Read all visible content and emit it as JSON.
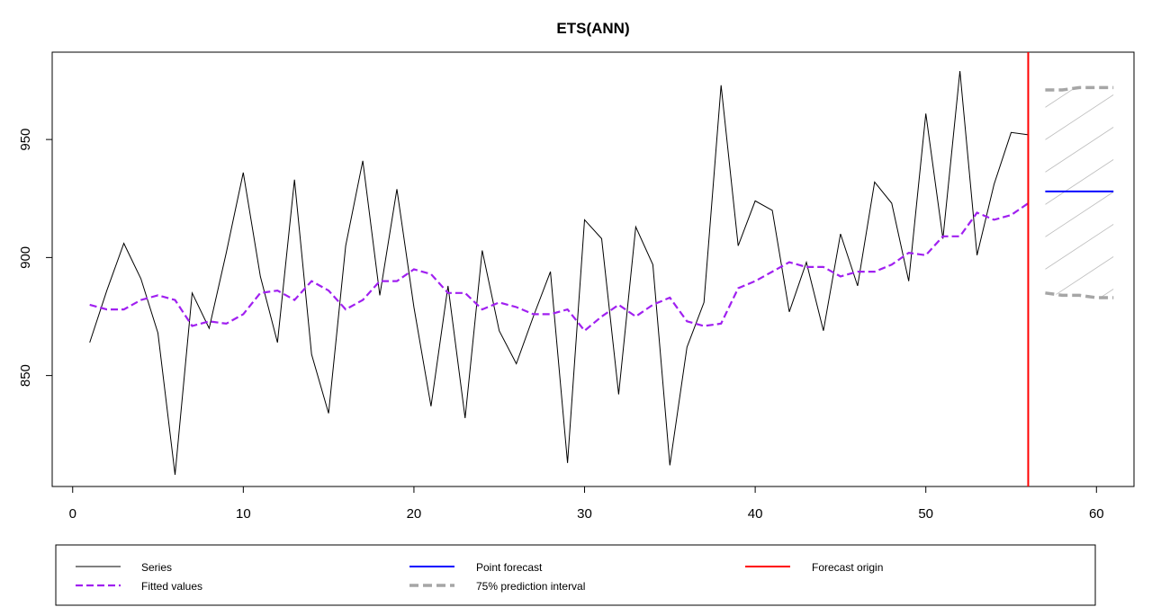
{
  "chart_data": {
    "type": "line",
    "title": "ETS(ANN)",
    "xlabel": "",
    "ylabel": "",
    "xlim": [
      -1.2,
      62.2
    ],
    "ylim": [
      803,
      987
    ],
    "x_ticks": [
      0,
      10,
      20,
      30,
      40,
      50,
      60
    ],
    "y_ticks": [
      850,
      900,
      950
    ],
    "grid": false,
    "legend_position": "bottom",
    "colors": {
      "series": "#000000",
      "fitted": "#a020f0",
      "point_forecast": "#0000ff",
      "forecast_origin": "#ff0000",
      "interval": "#a6a6a6",
      "interval_fill": "#bebebe"
    },
    "series": [
      {
        "name": "Series",
        "x": [
          1,
          2,
          3,
          4,
          5,
          6,
          7,
          8,
          9,
          10,
          11,
          12,
          13,
          14,
          15,
          16,
          17,
          18,
          19,
          20,
          21,
          22,
          23,
          24,
          25,
          26,
          27,
          28,
          29,
          30,
          31,
          32,
          33,
          34,
          35,
          36,
          37,
          38,
          39,
          40,
          41,
          42,
          43,
          44,
          45,
          46,
          47,
          48,
          49,
          50,
          51,
          52,
          53,
          54,
          55,
          56
        ],
        "values": [
          864,
          886,
          906,
          891,
          868,
          808,
          885,
          870,
          902,
          936,
          892,
          864,
          933,
          859,
          834,
          905,
          941,
          884,
          929,
          879,
          837,
          888,
          832,
          903,
          869,
          855,
          875,
          894,
          813,
          916,
          908,
          842,
          913,
          897,
          812,
          862,
          881,
          973,
          905,
          924,
          920,
          877,
          898,
          869,
          910,
          888,
          932,
          923,
          890,
          961,
          908,
          979,
          901,
          931,
          953,
          952
        ]
      },
      {
        "name": "Fitted values",
        "x": [
          1,
          2,
          3,
          4,
          5,
          6,
          7,
          8,
          9,
          10,
          11,
          12,
          13,
          14,
          15,
          16,
          17,
          18,
          19,
          20,
          21,
          22,
          23,
          24,
          25,
          26,
          27,
          28,
          29,
          30,
          31,
          32,
          33,
          34,
          35,
          36,
          37,
          38,
          39,
          40,
          41,
          42,
          43,
          44,
          45,
          46,
          47,
          48,
          49,
          50,
          51,
          52,
          53,
          54,
          55,
          56
        ],
        "values": [
          880,
          878,
          878,
          882,
          884,
          882,
          871,
          873,
          872,
          876,
          885,
          886,
          882,
          890,
          886,
          878,
          882,
          890,
          890,
          895,
          893,
          885,
          885,
          878,
          881,
          879,
          876,
          876,
          878,
          869,
          875,
          880,
          875,
          880,
          883,
          873,
          871,
          872,
          887,
          890,
          894,
          898,
          896,
          896,
          892,
          894,
          894,
          897,
          902,
          901,
          909,
          909,
          919,
          916,
          918,
          923
        ]
      },
      {
        "name": "Point forecast",
        "x": [
          57,
          58,
          59,
          60,
          61
        ],
        "values": [
          928,
          928,
          928,
          928,
          928
        ]
      },
      {
        "name": "75% prediction interval",
        "x": [
          57,
          58,
          59,
          60,
          61
        ],
        "upper": [
          971,
          971,
          972,
          972,
          972
        ],
        "lower": [
          885,
          884,
          884,
          883,
          883
        ]
      }
    ],
    "forecast_origin": 56,
    "legend": [
      {
        "label": "Series",
        "style": "solid",
        "color": "#000000"
      },
      {
        "label": "Fitted values",
        "style": "dashed",
        "color": "#a020f0"
      },
      {
        "label": "Point forecast",
        "style": "solid",
        "color": "#0000ff"
      },
      {
        "label": "75% prediction interval",
        "style": "dashed",
        "color": "#a6a6a6"
      },
      {
        "label": "Forecast origin",
        "style": "solid",
        "color": "#ff0000"
      }
    ]
  }
}
